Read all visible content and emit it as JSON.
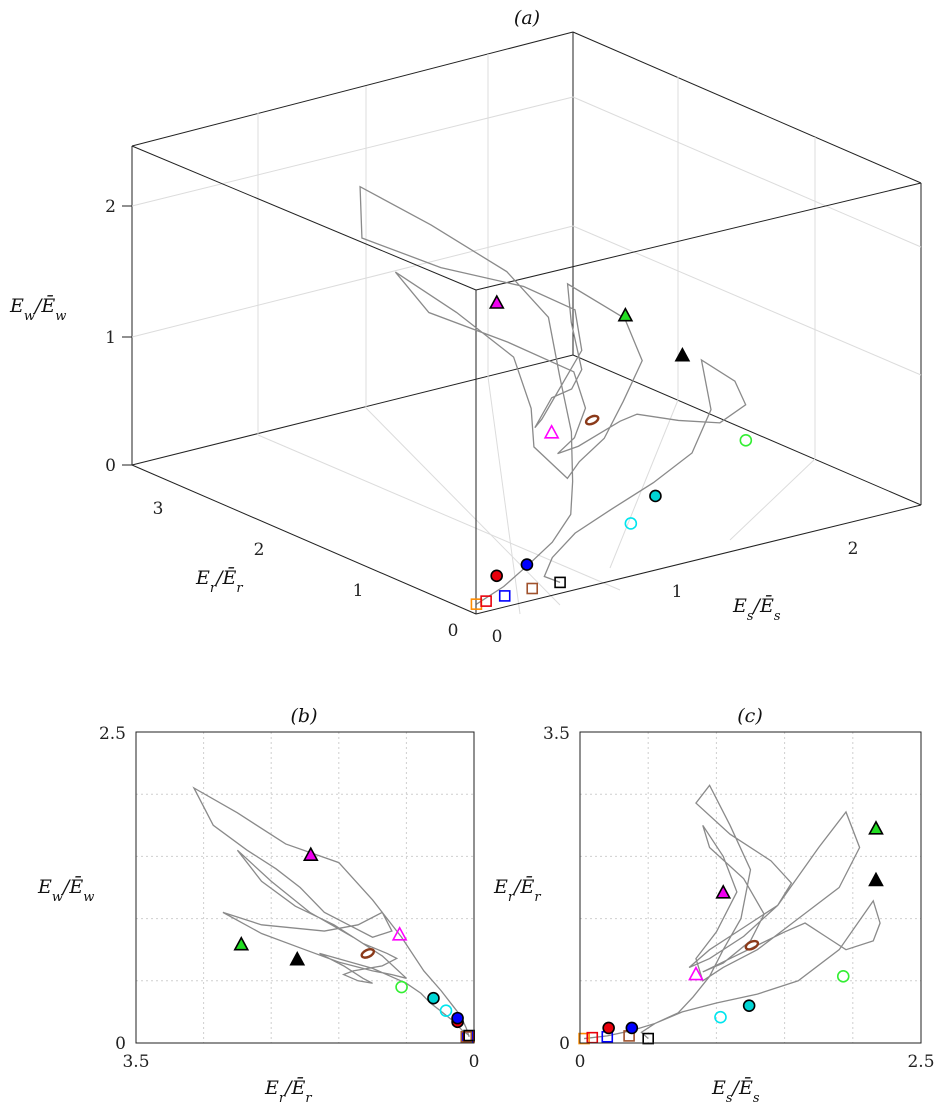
{
  "chart_data": [
    {
      "panel": "(a)",
      "type": "scatter",
      "title": "(a)",
      "xlabel": "E_s/Ē_s",
      "ylabel": "E_r/Ē_r",
      "zlabel": "E_w/Ē_w",
      "xticks": [
        "0",
        "1",
        "2"
      ],
      "yticks": [
        "0",
        "1",
        "2",
        "3"
      ],
      "zticks": [
        "0",
        "1",
        "2"
      ],
      "xlim": [
        0,
        2.5
      ],
      "ylim": [
        0,
        3.5
      ],
      "zlim": [
        0,
        2.5
      ],
      "grid": true
    },
    {
      "panel": "(b)",
      "type": "scatter",
      "title": "(b)",
      "xlabel": "E_r/Ē_r",
      "ylabel": "E_w/Ē_w",
      "xticks": [
        "3.5",
        "0"
      ],
      "yticks": [
        "0",
        "2.5"
      ],
      "xlim": [
        3.5,
        0
      ],
      "ylim": [
        0,
        2.5
      ],
      "grid": true
    },
    {
      "panel": "(c)",
      "type": "scatter",
      "title": "(c)",
      "xlabel": "E_s/Ē_s",
      "ylabel": "E_r/Ē_r",
      "xticks": [
        "0",
        "2.5"
      ],
      "yticks": [
        "0",
        "3.5"
      ],
      "xlim": [
        0,
        2.5
      ],
      "ylim": [
        0,
        3.5
      ],
      "grid": true
    }
  ],
  "markers": [
    {
      "id": "orange-square",
      "shape": "square",
      "fill": "none",
      "stroke": "#ff8c00",
      "Es": 0.03,
      "Er": 0.05,
      "Ew": 0.05
    },
    {
      "id": "red-square",
      "shape": "square",
      "fill": "none",
      "stroke": "#e8000b",
      "Es": 0.09,
      "Er": 0.06,
      "Ew": 0.05
    },
    {
      "id": "blue-square",
      "shape": "square",
      "fill": "none",
      "stroke": "#0000ff",
      "Es": 0.2,
      "Er": 0.07,
      "Ew": 0.05
    },
    {
      "id": "brown-square",
      "shape": "square",
      "fill": "none",
      "stroke": "#a0522d",
      "Es": 0.36,
      "Er": 0.08,
      "Ew": 0.05
    },
    {
      "id": "black-square",
      "shape": "square",
      "fill": "none",
      "stroke": "#000000",
      "Es": 0.5,
      "Er": 0.05,
      "Ew": 0.06
    },
    {
      "id": "red-circle",
      "shape": "circle",
      "fill": "#e8000b",
      "stroke": "#000000",
      "Es": 0.21,
      "Er": 0.17,
      "Ew": 0.17
    },
    {
      "id": "blue-circle",
      "shape": "circle",
      "fill": "#0000ff",
      "stroke": "#000000",
      "Es": 0.38,
      "Er": 0.17,
      "Ew": 0.2
    },
    {
      "id": "cyan-open-circle",
      "shape": "circle",
      "fill": "none",
      "stroke": "#00e5ee",
      "Es": 1.03,
      "Er": 0.29,
      "Ew": 0.26
    },
    {
      "id": "cyan-filled-circle",
      "shape": "circle",
      "fill": "#00d5d5",
      "stroke": "#000000",
      "Es": 1.24,
      "Er": 0.42,
      "Ew": 0.36
    },
    {
      "id": "green-open-circle",
      "shape": "circle",
      "fill": "none",
      "stroke": "#33ee33",
      "Es": 1.93,
      "Er": 0.75,
      "Ew": 0.45
    },
    {
      "id": "magenta-open-triangle",
      "shape": "triangle",
      "fill": "none",
      "stroke": "#ff00ff",
      "Es": 0.85,
      "Er": 0.77,
      "Ew": 0.87
    },
    {
      "id": "brown-ellipse",
      "shape": "ellipse",
      "fill": "none",
      "stroke": "#8b3a1a",
      "Es": 1.26,
      "Er": 1.1,
      "Ew": 0.72
    },
    {
      "id": "magenta-filled-triangle",
      "shape": "triangle",
      "fill": "#ee00ee",
      "stroke": "#000000",
      "Es": 1.05,
      "Er": 1.69,
      "Ew": 1.51
    },
    {
      "id": "green-filled-triangle",
      "shape": "triangle",
      "fill": "#22dd22",
      "stroke": "#000000",
      "Es": 2.17,
      "Er": 2.41,
      "Ew": 0.79
    },
    {
      "id": "black-filled-triangle",
      "shape": "triangle",
      "fill": "#000000",
      "stroke": "#000000",
      "Es": 2.17,
      "Er": 1.83,
      "Ew": 0.67
    }
  ],
  "trajectory": [
    [
      0.03,
      0.05,
      0.05
    ],
    [
      0.2,
      0.08,
      0.12
    ],
    [
      0.38,
      0.14,
      0.22
    ],
    [
      0.55,
      0.22,
      0.3
    ],
    [
      0.72,
      0.34,
      0.42
    ],
    [
      0.83,
      0.52,
      0.58
    ],
    [
      0.95,
      0.75,
      0.85
    ],
    [
      1.05,
      1.05,
      1.15
    ],
    [
      1.18,
      1.4,
      1.45
    ],
    [
      1.25,
      1.95,
      1.6
    ],
    [
      1.1,
      2.45,
      1.85
    ],
    [
      0.95,
      2.9,
      2.05
    ],
    [
      0.85,
      2.7,
      1.75
    ],
    [
      1.1,
      2.35,
      1.55
    ],
    [
      1.4,
      2.05,
      1.4
    ],
    [
      1.55,
      1.8,
      1.25
    ],
    [
      1.45,
      1.55,
      1.05
    ],
    [
      1.2,
      1.3,
      0.95
    ],
    [
      0.95,
      1.05,
      0.85
    ],
    [
      0.8,
      0.85,
      0.9
    ],
    [
      0.95,
      0.95,
      1.05
    ],
    [
      1.2,
      1.2,
      0.95
    ],
    [
      1.45,
      1.55,
      0.9
    ],
    [
      1.75,
      2.2,
      0.95
    ],
    [
      1.95,
      2.6,
      1.05
    ],
    [
      2.05,
      2.2,
      0.88
    ],
    [
      1.9,
      1.75,
      0.75
    ],
    [
      1.6,
      1.4,
      0.65
    ],
    [
      1.3,
      1.05,
      0.58
    ],
    [
      1.05,
      0.85,
      0.55
    ],
    [
      0.9,
      0.7,
      0.52
    ],
    [
      0.85,
      0.95,
      0.7
    ],
    [
      1.0,
      1.25,
      0.85
    ],
    [
      1.15,
      1.7,
      1.05
    ],
    [
      1.05,
      2.1,
      1.3
    ],
    [
      0.9,
      2.45,
      1.55
    ],
    [
      0.95,
      2.2,
      1.3
    ],
    [
      1.2,
      1.85,
      1.1
    ],
    [
      1.35,
      1.45,
      0.95
    ],
    [
      1.25,
      1.15,
      0.8
    ],
    [
      1.05,
      0.9,
      0.72
    ],
    [
      0.9,
      0.8,
      0.68
    ],
    [
      1.1,
      0.95,
      0.62
    ],
    [
      1.3,
      1.1,
      0.6
    ],
    [
      1.5,
      1.25,
      0.58
    ],
    [
      1.65,
      1.35,
      0.55
    ],
    [
      1.8,
      1.2,
      0.5
    ],
    [
      1.95,
      1.05,
      0.48
    ],
    [
      2.15,
      1.15,
      0.52
    ],
    [
      2.2,
      1.35,
      0.62
    ],
    [
      2.15,
      1.6,
      0.72
    ],
    [
      1.9,
      1.05,
      0.6
    ],
    [
      1.6,
      0.7,
      0.48
    ],
    [
      1.3,
      0.55,
      0.4
    ],
    [
      1.0,
      0.45,
      0.32
    ],
    [
      0.75,
      0.35,
      0.26
    ],
    [
      0.55,
      0.22,
      0.18
    ],
    [
      0.45,
      0.12,
      0.1
    ],
    [
      0.5,
      0.05,
      0.06
    ]
  ]
}
